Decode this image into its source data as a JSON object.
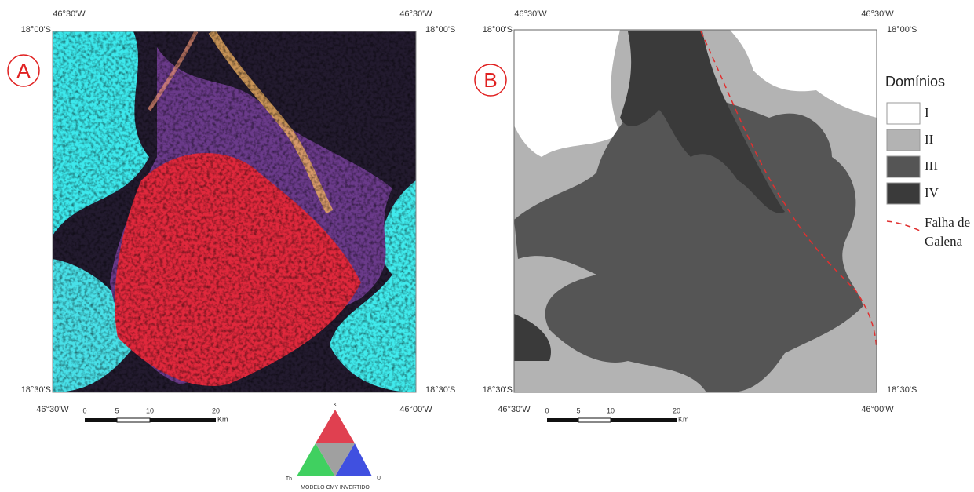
{
  "panels": [
    {
      "label": "A",
      "coords": {
        "top_left_lon": "46°30'W",
        "top_right_lon": "46°30'W",
        "left_top_lat": "18°00'S",
        "right_top_lat": "18°00'S",
        "left_bottom_lat": "18°30'S",
        "right_bottom_lat": "18°30'S",
        "bottom_left_lon": "46°30'W",
        "bottom_right_lon": "46°00'W"
      },
      "scale": {
        "ticks": [
          "0",
          "5",
          "10",
          "20"
        ],
        "unit": "Km"
      },
      "ternary": {
        "top": "K",
        "left": "Th",
        "right": "U",
        "caption": "MODELO CMY INVERTIDO"
      }
    },
    {
      "label": "B",
      "coords": {
        "top_left_lon": "46°30'W",
        "top_right_lon": "46°30'W",
        "left_top_lat": "18°00'S",
        "right_top_lat": "18°00'S",
        "left_bottom_lat": "18°30'S",
        "right_bottom_lat": "18°30'S",
        "bottom_left_lon": "46°30'W",
        "bottom_right_lon": "46°00'W"
      },
      "scale": {
        "ticks": [
          "0",
          "5",
          "10",
          "20"
        ],
        "unit": "Km"
      },
      "legend": {
        "title": "Domínios",
        "items": [
          {
            "label": "I",
            "color": "#ffffff"
          },
          {
            "label": "II",
            "color": "#b3b3b3"
          },
          {
            "label": "III",
            "color": "#555555"
          },
          {
            "label": "IV",
            "color": "#3a3a3a"
          }
        ],
        "fault": {
          "lines": [
            "Falha de",
            "Galena"
          ],
          "color": "#e03030"
        }
      }
    }
  ]
}
